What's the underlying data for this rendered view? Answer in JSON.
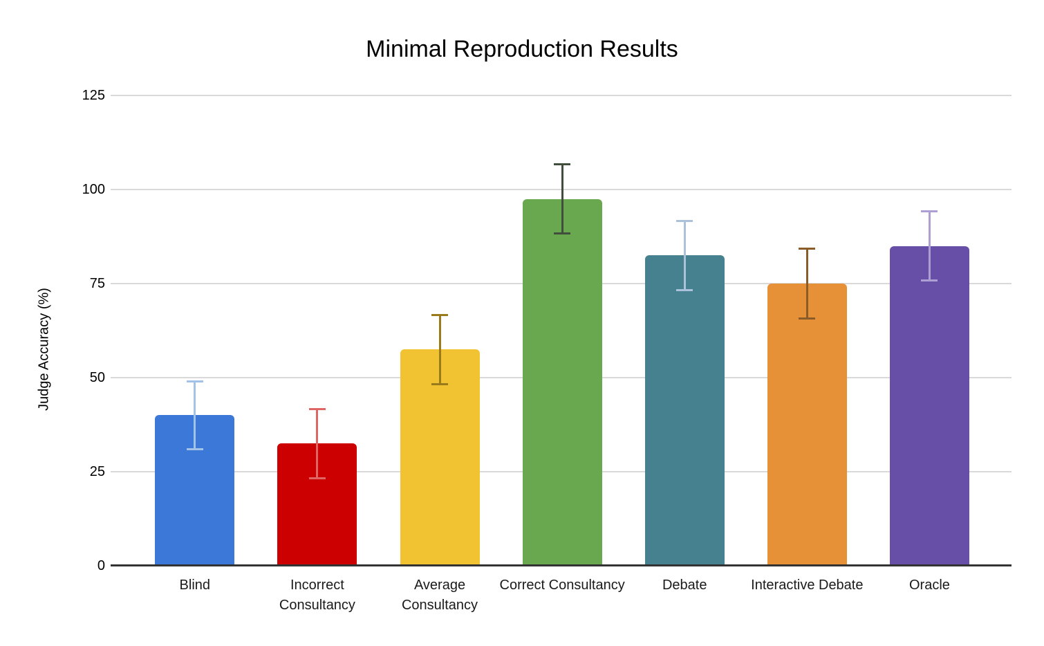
{
  "chart_data": {
    "type": "bar",
    "title": "Minimal Reproduction Results",
    "ylabel": "Judge Accuracy (%)",
    "xlabel": "",
    "categories": [
      "Blind",
      "Incorrect Consultancy",
      "Average Consultancy",
      "Correct Consultancy",
      "Debate",
      "Interactive Debate",
      "Oracle"
    ],
    "values": [
      40,
      32.5,
      57.5,
      97.5,
      82.5,
      75,
      85
    ],
    "error_low": [
      31,
      23.3,
      48.3,
      88.3,
      73.3,
      65.8,
      75.8
    ],
    "error_high": [
      49,
      41.7,
      66.7,
      106.7,
      91.7,
      84.2,
      94.2
    ],
    "bar_colors": [
      "#3c78d8",
      "#cc0000",
      "#f1c232",
      "#6aa84f",
      "#45818e",
      "#e69138",
      "#674ea7"
    ],
    "error_bar_colors": [
      "#a2c2e8",
      "#e06666",
      "#9a7b1c",
      "#414e3d",
      "#abc2da",
      "#8a5c28",
      "#ad9fd2"
    ],
    "yticks": [
      0,
      25,
      50,
      75,
      100,
      125
    ],
    "ylim": [
      0,
      125
    ],
    "grid": true,
    "legend": "none",
    "background": "#ffffff",
    "gridline_color": "#d9d9d9",
    "axis_line_color": "#333333"
  }
}
